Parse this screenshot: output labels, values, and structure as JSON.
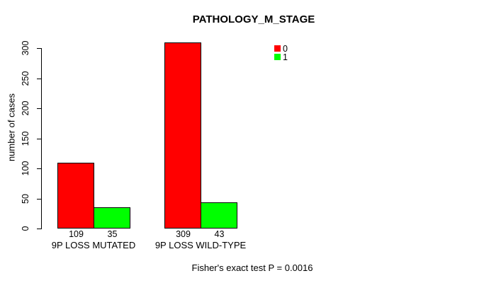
{
  "chart_data": {
    "type": "bar",
    "title": "PATHOLOGY_M_STAGE",
    "ylabel": "number of cases",
    "xlabel": "",
    "ylim": [
      0,
      300
    ],
    "yticks": [
      0,
      50,
      100,
      150,
      200,
      250,
      300
    ],
    "grid": false,
    "categories": [
      "9P LOSS MUTATED",
      "9P LOSS WILD-TYPE"
    ],
    "series": [
      {
        "name": "0",
        "color": "#ff0000",
        "values": [
          109,
          309
        ]
      },
      {
        "name": "1",
        "color": "#00ff00",
        "values": [
          35,
          43
        ]
      }
    ],
    "bar_value_labels": [
      [
        "109",
        "35"
      ],
      [
        "309",
        "43"
      ]
    ],
    "legend_position": "top-right",
    "annotation": "Fisher's exact test P = 0.0016"
  },
  "colors": {
    "background": "#ffffff",
    "foreground": "#000000",
    "series_0": "#ff0000",
    "series_1": "#00ff00"
  }
}
